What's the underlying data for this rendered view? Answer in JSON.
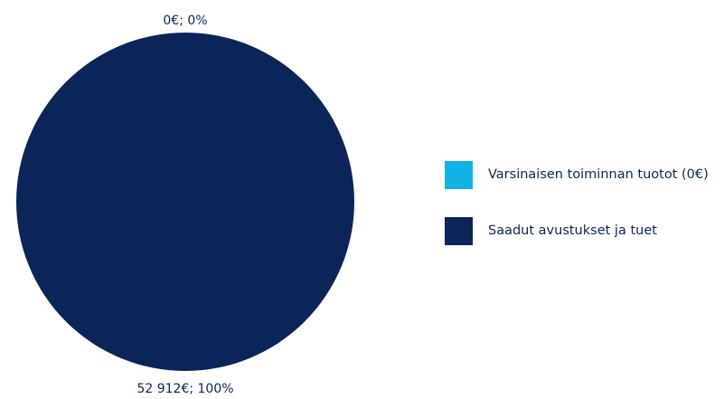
{
  "chart_data": {
    "type": "pie",
    "title": "",
    "series": [
      {
        "name": "Varsinaisen toiminnan tuotot (0€)",
        "value": 0,
        "label": "0€; 0%",
        "color": "#11b1e6"
      },
      {
        "name": "Saadut avustukset ja tuet",
        "value": 52912,
        "label": "52 912€; 100%",
        "color": "#0b2559"
      }
    ],
    "legend_position": "right"
  }
}
